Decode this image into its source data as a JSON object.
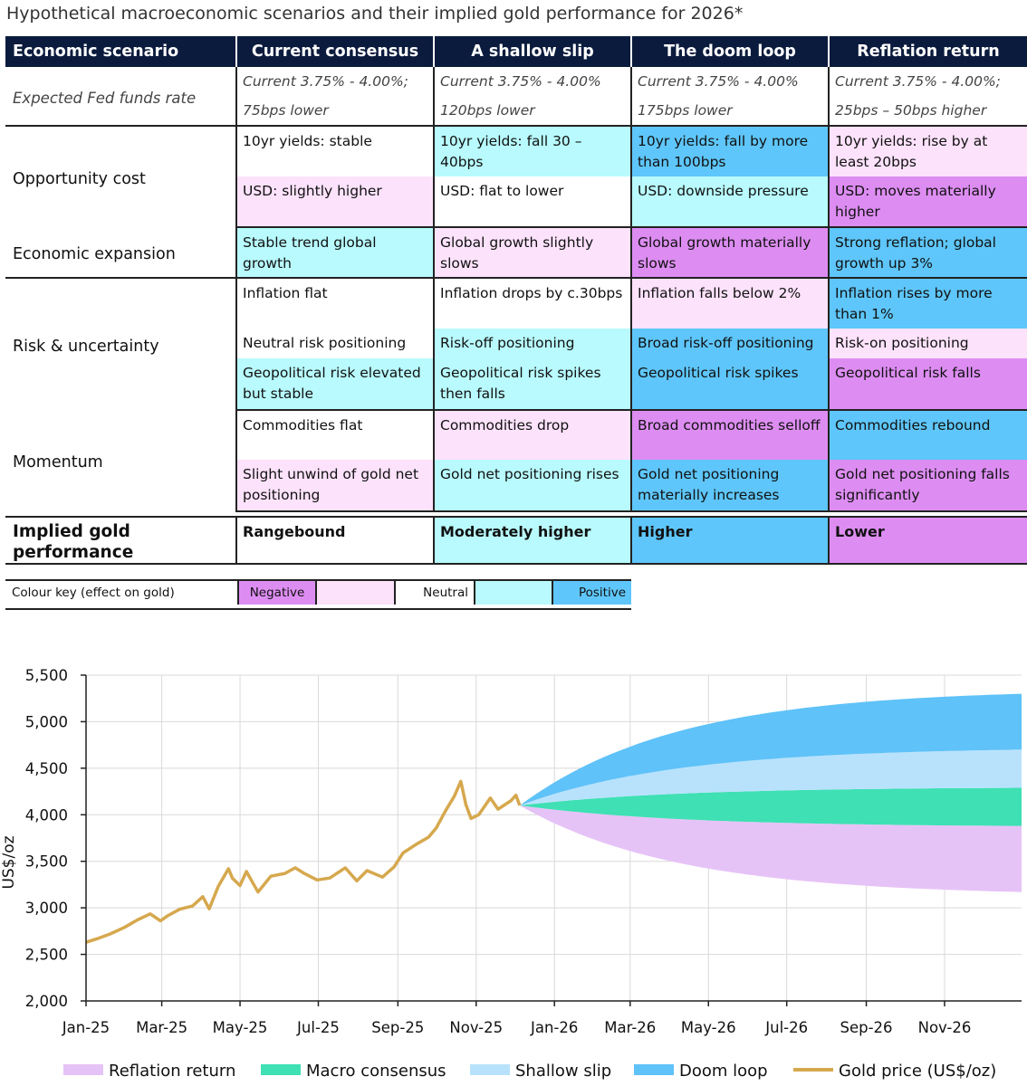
{
  "page": {
    "title": "Hypothetical macroeconomic scenarios and their implied gold performance for 2026*"
  },
  "table": {
    "headers": [
      "Economic scenario",
      "Current consensus",
      "A shallow slip",
      "The doom loop",
      "Reflation return"
    ],
    "fed": {
      "label": "Expected Fed funds rate",
      "cells": [
        [
          "Current 3.75% - 4.00%;",
          "75bps lower"
        ],
        [
          "Current 3.75% - 4.00%",
          "120bps lower"
        ],
        [
          "Current 3.75% - 4.00%",
          "175bps lower"
        ],
        [
          "Current 3.75% - 4.00%;",
          "25bps – 50bps higher"
        ]
      ]
    },
    "groups": [
      {
        "label": "Opportunity cost",
        "rows": [
          [
            {
              "text": "10yr yields: stable",
              "effect": "neutral"
            },
            {
              "text": "10yr yields: fall 30 – 40bps",
              "effect": "slightly-positive"
            },
            {
              "text": "10yr yields: fall by more than 100bps",
              "effect": "positive"
            },
            {
              "text": "10yr yields: rise by at least 20bps",
              "effect": "slightly-negative"
            }
          ],
          [
            {
              "text": "USD: slightly higher",
              "effect": "slightly-negative"
            },
            {
              "text": "USD: flat to lower",
              "effect": "neutral"
            },
            {
              "text": "USD: downside pressure",
              "effect": "slightly-positive"
            },
            {
              "text": "USD: moves materially higher",
              "effect": "negative"
            }
          ]
        ]
      },
      {
        "label": "Economic expansion",
        "rows": [
          [
            {
              "text": "Stable trend global growth",
              "effect": "slightly-positive"
            },
            {
              "text": "Global growth slightly slows",
              "effect": "slightly-negative"
            },
            {
              "text": "Global growth materially slows",
              "effect": "negative"
            },
            {
              "text": "Strong reflation; global growth up 3%",
              "effect": "positive"
            }
          ]
        ]
      },
      {
        "label": "Risk & uncertainty",
        "rows": [
          [
            {
              "text": "Inflation flat",
              "effect": "neutral"
            },
            {
              "text": "Inflation drops by c.30bps",
              "effect": "neutral"
            },
            {
              "text": "Inflation falls below 2%",
              "effect": "slightly-negative"
            },
            {
              "text": "Inflation rises by more than 1%",
              "effect": "positive"
            }
          ],
          [
            {
              "text": "Neutral risk positioning",
              "effect": "neutral"
            },
            {
              "text": "Risk-off positioning",
              "effect": "slightly-positive"
            },
            {
              "text": "Broad risk-off positioning",
              "effect": "positive"
            },
            {
              "text": "Risk-on positioning",
              "effect": "slightly-negative"
            }
          ],
          [
            {
              "text": "Geopolitical risk elevated but stable",
              "effect": "slightly-positive"
            },
            {
              "text": "Geopolitical risk spikes then falls",
              "effect": "slightly-positive"
            },
            {
              "text": "Geopolitical risk spikes",
              "effect": "positive"
            },
            {
              "text": "Geopolitical risk falls",
              "effect": "negative"
            }
          ]
        ]
      },
      {
        "label": "Momentum",
        "rows": [
          [
            {
              "text": "Commodities flat",
              "effect": "neutral"
            },
            {
              "text": "Commodities drop",
              "effect": "slightly-negative"
            },
            {
              "text": "Broad commodities selloff",
              "effect": "negative"
            },
            {
              "text": "Commodities rebound",
              "effect": "positive"
            }
          ],
          [
            {
              "text": "Slight unwind of gold net positioning",
              "effect": "slightly-negative"
            },
            {
              "text": "Gold net positioning rises",
              "effect": "slightly-positive"
            },
            {
              "text": "Gold net positioning materially increases",
              "effect": "positive"
            },
            {
              "text": "Gold net positioning falls significantly",
              "effect": "negative"
            }
          ]
        ]
      }
    ],
    "implied": {
      "label": "Implied gold performance",
      "cells": [
        {
          "text": "Rangebound",
          "effect": "neutral"
        },
        {
          "text": "Moderately higher",
          "effect": "slightly-positive"
        },
        {
          "text": "Higher",
          "effect": "positive"
        },
        {
          "text": "Lower",
          "effect": "negative"
        }
      ]
    }
  },
  "colour_key": {
    "label": "Colour key (effect on gold)",
    "negative": "Negative",
    "neutral": "Neutral",
    "positive": "Positive"
  },
  "colors": {
    "header_bg": "#0b1b3d",
    "negative": "#dd8df2",
    "slightly_negative": "#fce2fb",
    "neutral": "#ffffff",
    "slightly_positive": "#b8fafd",
    "positive": "#5ec6fa",
    "gold_line": "#d6a84e",
    "band_reflation": "#e6c3f7",
    "band_consensus": "#3fe0b4",
    "band_shallow": "#b8e2fc",
    "band_doom": "#5fc2f8"
  },
  "chart_data": {
    "type": "line",
    "ylabel": "US$/oz",
    "xlabel": "",
    "ylim": [
      2000,
      5500
    ],
    "yticks": [
      2000,
      2500,
      3000,
      3500,
      4000,
      4500,
      5000,
      5500
    ],
    "ytick_labels": [
      "2,000",
      "2,500",
      "3,000",
      "3,500",
      "4,000",
      "4,500",
      "5,000",
      "5,500"
    ],
    "xlim": [
      "2025-01-01",
      "2026-12-31"
    ],
    "xticks": [
      "2025-01-01",
      "2025-03-01",
      "2025-05-01",
      "2025-07-01",
      "2025-09-01",
      "2025-11-01",
      "2026-01-01",
      "2026-03-01",
      "2026-05-01",
      "2026-07-01",
      "2026-09-01",
      "2026-11-01"
    ],
    "xtick_labels": [
      "Jan-25",
      "Mar-25",
      "May-25",
      "Jul-25",
      "Sep-25",
      "Nov-25",
      "Jan-26",
      "Mar-26",
      "May-26",
      "Jul-26",
      "Sep-26",
      "Nov-26"
    ],
    "grid": true,
    "legend_position": "bottom",
    "series": [
      {
        "name": "Gold price (US$/oz)",
        "color": "#d6a84e",
        "points": [
          [
            "2025-01-01",
            2630
          ],
          [
            "2025-01-10",
            2670
          ],
          [
            "2025-01-20",
            2720
          ],
          [
            "2025-01-31",
            2790
          ],
          [
            "2025-02-10",
            2870
          ],
          [
            "2025-02-20",
            2935
          ],
          [
            "2025-02-28",
            2860
          ],
          [
            "2025-03-05",
            2910
          ],
          [
            "2025-03-15",
            2985
          ],
          [
            "2025-03-25",
            3020
          ],
          [
            "2025-04-02",
            3120
          ],
          [
            "2025-04-07",
            2990
          ],
          [
            "2025-04-14",
            3230
          ],
          [
            "2025-04-22",
            3420
          ],
          [
            "2025-04-25",
            3320
          ],
          [
            "2025-05-01",
            3240
          ],
          [
            "2025-05-06",
            3390
          ],
          [
            "2025-05-15",
            3170
          ],
          [
            "2025-05-25",
            3340
          ],
          [
            "2025-06-05",
            3370
          ],
          [
            "2025-06-13",
            3430
          ],
          [
            "2025-06-20",
            3370
          ],
          [
            "2025-06-30",
            3300
          ],
          [
            "2025-07-10",
            3320
          ],
          [
            "2025-07-22",
            3430
          ],
          [
            "2025-07-31",
            3290
          ],
          [
            "2025-08-08",
            3400
          ],
          [
            "2025-08-20",
            3330
          ],
          [
            "2025-08-29",
            3440
          ],
          [
            "2025-09-05",
            3590
          ],
          [
            "2025-09-15",
            3680
          ],
          [
            "2025-09-25",
            3760
          ],
          [
            "2025-10-01",
            3860
          ],
          [
            "2025-10-08",
            4040
          ],
          [
            "2025-10-15",
            4200
          ],
          [
            "2025-10-20",
            4360
          ],
          [
            "2025-10-24",
            4110
          ],
          [
            "2025-10-28",
            3960
          ],
          [
            "2025-11-03",
            4000
          ],
          [
            "2025-11-12",
            4180
          ],
          [
            "2025-11-18",
            4060
          ],
          [
            "2025-11-28",
            4150
          ],
          [
            "2025-12-02",
            4210
          ],
          [
            "2025-12-05",
            4100
          ]
        ]
      }
    ],
    "bands": {
      "start_date": "2025-12-05",
      "end_date": "2026-12-31",
      "start_value": 4100,
      "order": [
        "Reflation return",
        "Macro consensus",
        "Shallow slip",
        "Doom loop"
      ],
      "items": [
        {
          "name": "Reflation return",
          "lower_end": 3170,
          "upper_end": 3880,
          "color": "#e6c3f7"
        },
        {
          "name": "Macro consensus",
          "lower_end": 3880,
          "upper_end": 4290,
          "color": "#3fe0b4"
        },
        {
          "name": "Shallow slip",
          "lower_end": 4290,
          "upper_end": 4700,
          "color": "#b8e2fc"
        },
        {
          "name": "Doom loop",
          "lower_end": 4700,
          "upper_end": 5300,
          "color": "#5fc2f8"
        }
      ]
    },
    "legend": [
      {
        "label": "Reflation return",
        "kind": "band",
        "color": "#e6c3f7"
      },
      {
        "label": "Macro consensus",
        "kind": "band",
        "color": "#3fe0b4"
      },
      {
        "label": "Shallow slip",
        "kind": "band",
        "color": "#b8e2fc"
      },
      {
        "label": "Doom loop",
        "kind": "band",
        "color": "#5fc2f8"
      },
      {
        "label": "Gold price (US$/oz)",
        "kind": "line",
        "color": "#d6a84e"
      }
    ]
  }
}
